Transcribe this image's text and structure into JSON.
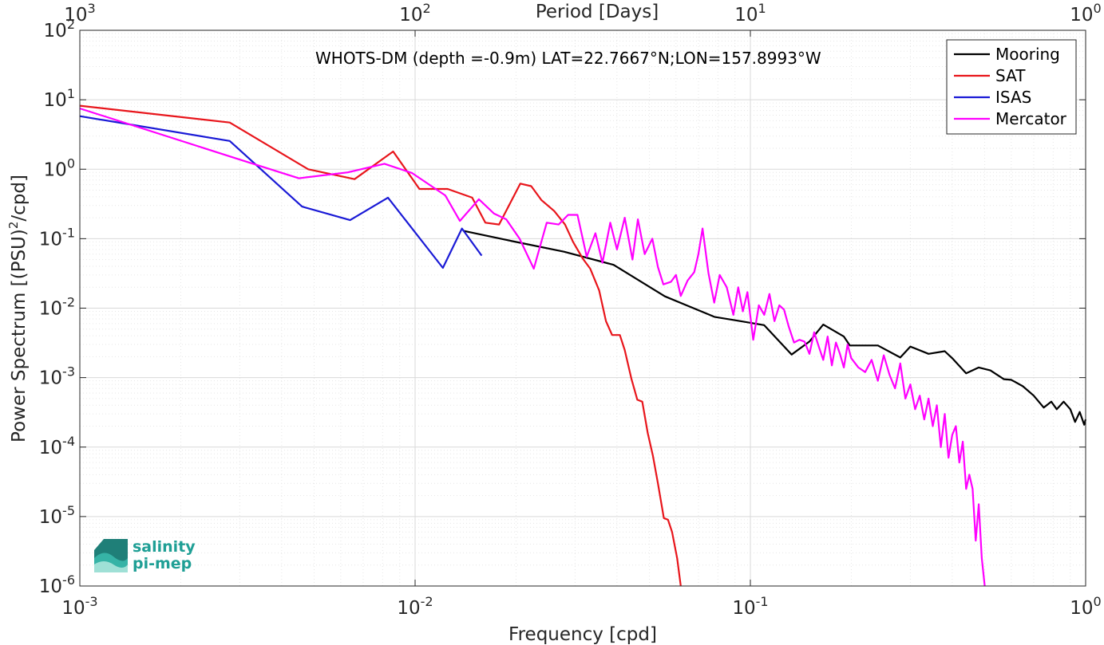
{
  "chart_data": {
    "type": "line",
    "title": "WHOTS-DM (depth =-0.9m) LAT=22.7667°N;LON=157.8993°W",
    "xlabel": "Frequency [cpd]",
    "ylabel_main": "Power Spectrum [(PSU)",
    "ylabel_sup": "2",
    "ylabel_tail": "/cpd]",
    "top_xlabel": "Period [Days]",
    "x_scale": "log",
    "y_scale": "log",
    "xlim": [
      0.001,
      1
    ],
    "ylim": [
      1e-06,
      100
    ],
    "grid": true,
    "legend_position": "top-right",
    "x_ticks": [
      {
        "value": 0.001,
        "base": "10",
        "exp": "-3"
      },
      {
        "value": 0.01,
        "base": "10",
        "exp": "-2"
      },
      {
        "value": 0.1,
        "base": "10",
        "exp": "-1"
      },
      {
        "value": 1,
        "base": "10",
        "exp": "0"
      }
    ],
    "y_ticks": [
      {
        "value": 1e-06,
        "base": "10",
        "exp": "-6"
      },
      {
        "value": 1e-05,
        "base": "10",
        "exp": "-5"
      },
      {
        "value": 0.0001,
        "base": "10",
        "exp": "-4"
      },
      {
        "value": 0.001,
        "base": "10",
        "exp": "-3"
      },
      {
        "value": 0.01,
        "base": "10",
        "exp": "-2"
      },
      {
        "value": 0.1,
        "base": "10",
        "exp": "-1"
      },
      {
        "value": 1,
        "base": "10",
        "exp": "0"
      },
      {
        "value": 10,
        "base": "10",
        "exp": "1"
      },
      {
        "value": 100,
        "base": "10",
        "exp": "2"
      }
    ],
    "top_ticks": [
      {
        "value": 0.001,
        "base": "10",
        "exp": "3"
      },
      {
        "value": 0.01,
        "base": "10",
        "exp": "2"
      },
      {
        "value": 0.1,
        "base": "10",
        "exp": "1"
      },
      {
        "value": 1,
        "base": "10",
        "exp": "0"
      }
    ],
    "series": [
      {
        "name": "Mooring",
        "color": "#000000",
        "points": [
          [
            0.0139,
            0.13
          ],
          [
            0.0195,
            0.092
          ],
          [
            0.0278,
            0.065
          ],
          [
            0.0391,
            0.042
          ],
          [
            0.0556,
            0.0148
          ],
          [
            0.0781,
            0.0075
          ],
          [
            0.0916,
            0.0066
          ],
          [
            0.1099,
            0.0057
          ],
          [
            0.1328,
            0.00215
          ],
          [
            0.15,
            0.0033
          ],
          [
            0.165,
            0.0058
          ],
          [
            0.19,
            0.0039
          ],
          [
            0.198,
            0.0029
          ],
          [
            0.24,
            0.0029
          ],
          [
            0.28,
            0.00195
          ],
          [
            0.3,
            0.0028
          ],
          [
            0.34,
            0.0022
          ],
          [
            0.38,
            0.0024
          ],
          [
            0.4,
            0.0019
          ],
          [
            0.44,
            0.00115
          ],
          [
            0.48,
            0.0014
          ],
          [
            0.52,
            0.00127
          ],
          [
            0.57,
            0.00095
          ],
          [
            0.6,
            0.00093
          ],
          [
            0.65,
            0.00075
          ],
          [
            0.7,
            0.00055
          ],
          [
            0.75,
            0.00037
          ],
          [
            0.79,
            0.00045
          ],
          [
            0.82,
            0.00035
          ],
          [
            0.86,
            0.00045
          ],
          [
            0.9,
            0.00035
          ],
          [
            0.93,
            0.00023
          ],
          [
            0.96,
            0.00032
          ],
          [
            0.99,
            0.00021
          ],
          [
            1.0,
            0.00025
          ]
        ]
      },
      {
        "name": "SAT",
        "color": "#e8151b",
        "points": [
          [
            0.001,
            8.2
          ],
          [
            0.0028,
            4.7
          ],
          [
            0.0048,
            1.0
          ],
          [
            0.0066,
            0.72
          ],
          [
            0.0086,
            1.8
          ],
          [
            0.0103,
            0.52
          ],
          [
            0.0125,
            0.52
          ],
          [
            0.0148,
            0.39
          ],
          [
            0.0162,
            0.17
          ],
          [
            0.0178,
            0.16
          ],
          [
            0.0206,
            0.62
          ],
          [
            0.0222,
            0.57
          ],
          [
            0.0238,
            0.36
          ],
          [
            0.026,
            0.25
          ],
          [
            0.028,
            0.16
          ],
          [
            0.0296,
            0.09
          ],
          [
            0.0316,
            0.052
          ],
          [
            0.0333,
            0.037
          ],
          [
            0.0354,
            0.018
          ],
          [
            0.0371,
            0.0065
          ],
          [
            0.0387,
            0.0041
          ],
          [
            0.0408,
            0.0041
          ],
          [
            0.0422,
            0.0025
          ],
          [
            0.0442,
            0.00095
          ],
          [
            0.046,
            0.00048
          ],
          [
            0.0476,
            0.00045
          ],
          [
            0.0494,
            0.00016
          ],
          [
            0.0512,
            7.5e-05
          ],
          [
            0.053,
            3e-05
          ],
          [
            0.0552,
            9.5e-06
          ],
          [
            0.0568,
            9e-06
          ],
          [
            0.0584,
            6e-06
          ],
          [
            0.0605,
            2.5e-06
          ],
          [
            0.062,
            1e-06
          ]
        ]
      },
      {
        "name": "ISAS",
        "color": "#1a1ad6",
        "points": [
          [
            0.001,
            5.8
          ],
          [
            0.0028,
            2.55
          ],
          [
            0.0046,
            0.29
          ],
          [
            0.0064,
            0.185
          ],
          [
            0.0083,
            0.39
          ],
          [
            0.0121,
            0.038
          ],
          [
            0.0138,
            0.14
          ],
          [
            0.0158,
            0.057
          ]
        ]
      },
      {
        "name": "Mercator",
        "color": "#ff00ff",
        "points": [
          [
            0.001,
            7.5
          ],
          [
            0.0029,
            1.45
          ],
          [
            0.0045,
            0.74
          ],
          [
            0.0063,
            0.9
          ],
          [
            0.0081,
            1.2
          ],
          [
            0.0098,
            0.88
          ],
          [
            0.0123,
            0.42
          ],
          [
            0.0136,
            0.18
          ],
          [
            0.0155,
            0.37
          ],
          [
            0.0172,
            0.23
          ],
          [
            0.0187,
            0.19
          ],
          [
            0.0205,
            0.1
          ],
          [
            0.0226,
            0.037
          ],
          [
            0.0247,
            0.17
          ],
          [
            0.0268,
            0.16
          ],
          [
            0.0286,
            0.22
          ],
          [
            0.0305,
            0.22
          ],
          [
            0.0325,
            0.055
          ],
          [
            0.0345,
            0.12
          ],
          [
            0.0362,
            0.045
          ],
          [
            0.0382,
            0.17
          ],
          [
            0.04,
            0.07
          ],
          [
            0.0422,
            0.2
          ],
          [
            0.0445,
            0.05
          ],
          [
            0.0462,
            0.19
          ],
          [
            0.0484,
            0.06
          ],
          [
            0.051,
            0.1
          ],
          [
            0.053,
            0.039
          ],
          [
            0.055,
            0.022
          ],
          [
            0.058,
            0.024
          ],
          [
            0.06,
            0.03
          ],
          [
            0.062,
            0.015
          ],
          [
            0.065,
            0.025
          ],
          [
            0.068,
            0.033
          ],
          [
            0.07,
            0.06
          ],
          [
            0.072,
            0.14
          ],
          [
            0.075,
            0.032
          ],
          [
            0.078,
            0.012
          ],
          [
            0.081,
            0.03
          ],
          [
            0.085,
            0.02
          ],
          [
            0.089,
            0.008
          ],
          [
            0.092,
            0.02
          ],
          [
            0.095,
            0.009
          ],
          [
            0.098,
            0.017
          ],
          [
            0.102,
            0.0035
          ],
          [
            0.106,
            0.011
          ],
          [
            0.11,
            0.008
          ],
          [
            0.114,
            0.016
          ],
          [
            0.118,
            0.0065
          ],
          [
            0.122,
            0.011
          ],
          [
            0.126,
            0.0095
          ],
          [
            0.13,
            0.0055
          ],
          [
            0.135,
            0.0032
          ],
          [
            0.14,
            0.0035
          ],
          [
            0.145,
            0.0033
          ],
          [
            0.15,
            0.0022
          ],
          [
            0.155,
            0.0045
          ],
          [
            0.16,
            0.0028
          ],
          [
            0.165,
            0.0018
          ],
          [
            0.17,
            0.0039
          ],
          [
            0.175,
            0.0015
          ],
          [
            0.18,
            0.0032
          ],
          [
            0.185,
            0.0022
          ],
          [
            0.19,
            0.0014
          ],
          [
            0.195,
            0.003
          ],
          [
            0.2,
            0.0019
          ],
          [
            0.21,
            0.0014
          ],
          [
            0.22,
            0.0012
          ],
          [
            0.23,
            0.0018
          ],
          [
            0.24,
            0.0009
          ],
          [
            0.25,
            0.0021
          ],
          [
            0.26,
            0.0011
          ],
          [
            0.27,
            0.0007
          ],
          [
            0.28,
            0.0016
          ],
          [
            0.29,
            0.0005
          ],
          [
            0.3,
            0.0008
          ],
          [
            0.31,
            0.00035
          ],
          [
            0.32,
            0.00055
          ],
          [
            0.33,
            0.00025
          ],
          [
            0.34,
            0.0005
          ],
          [
            0.35,
            0.0002
          ],
          [
            0.36,
            0.0004
          ],
          [
            0.37,
            0.0001
          ],
          [
            0.38,
            0.0003
          ],
          [
            0.39,
            7e-05
          ],
          [
            0.4,
            0.00015
          ],
          [
            0.41,
            0.0002
          ],
          [
            0.42,
            6e-05
          ],
          [
            0.43,
            0.00012
          ],
          [
            0.44,
            2.5e-05
          ],
          [
            0.45,
            4e-05
          ],
          [
            0.46,
            2.5e-05
          ],
          [
            0.47,
            4.5e-06
          ],
          [
            0.48,
            1.5e-05
          ],
          [
            0.49,
            2.5e-06
          ],
          [
            0.5,
            1e-06
          ]
        ]
      }
    ]
  },
  "logo": {
    "line1": "salinity",
    "line2": "pi-mep"
  }
}
